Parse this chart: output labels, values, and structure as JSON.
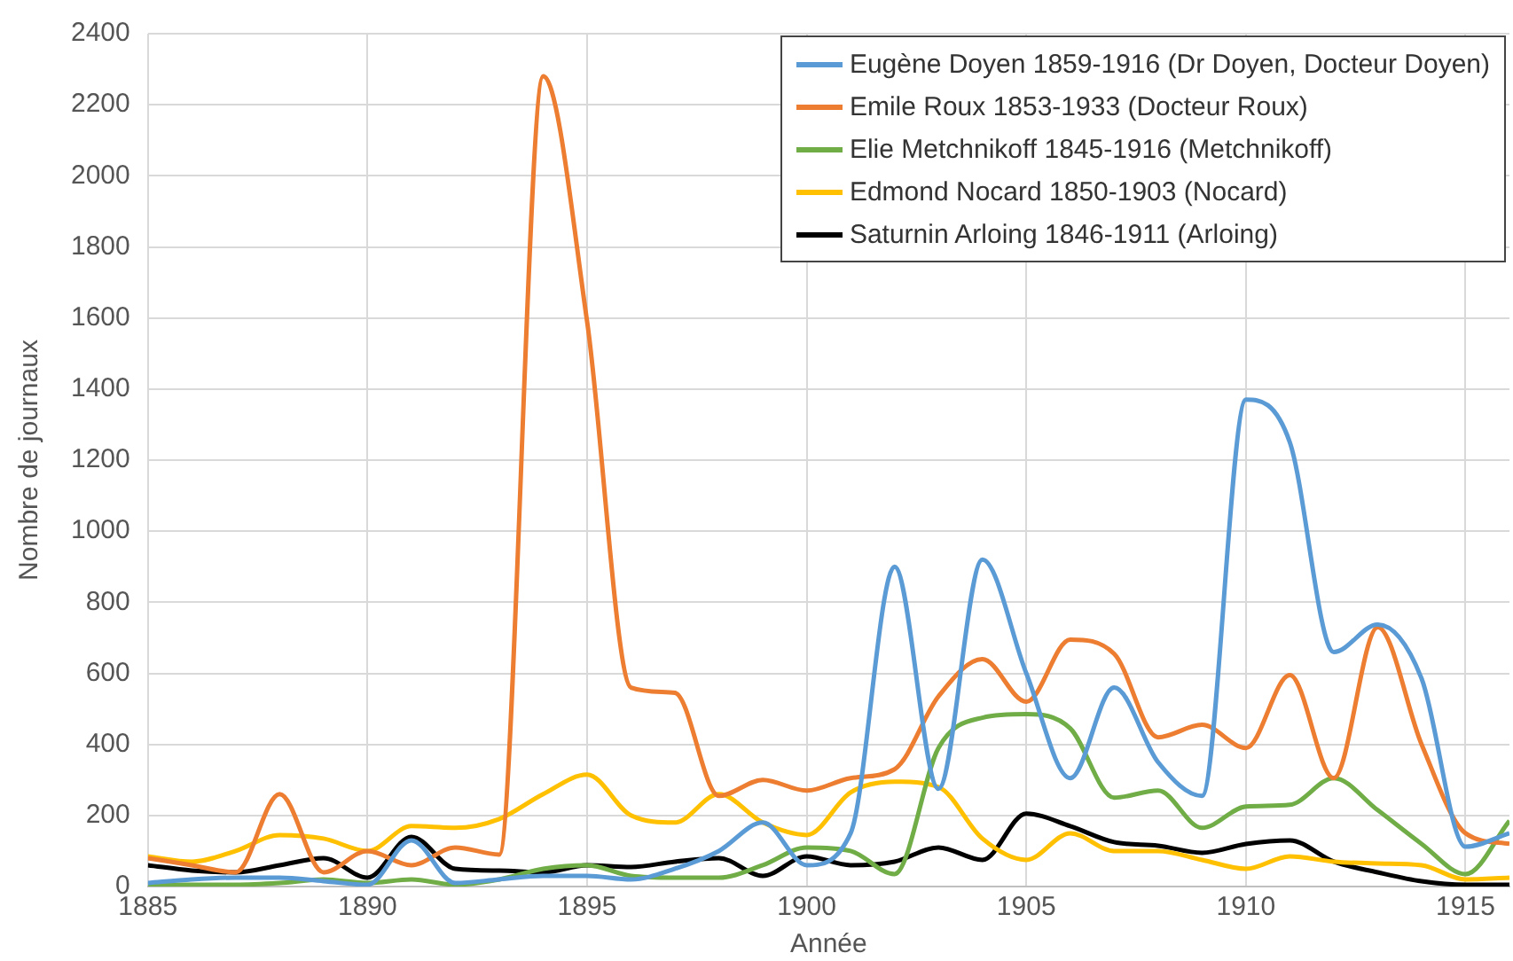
{
  "chart_data": {
    "type": "line",
    "xlabel": "Année",
    "ylabel": "Nombre de journaux",
    "x": [
      1885,
      1886,
      1887,
      1888,
      1889,
      1890,
      1891,
      1892,
      1893,
      1894,
      1895,
      1896,
      1897,
      1898,
      1899,
      1900,
      1901,
      1902,
      1903,
      1904,
      1905,
      1906,
      1907,
      1908,
      1909,
      1910,
      1911,
      1912,
      1913,
      1914,
      1915,
      1916
    ],
    "xlim": [
      1885,
      1916
    ],
    "xticks": [
      1885,
      1890,
      1895,
      1900,
      1905,
      1910,
      1915
    ],
    "ylim": [
      0,
      2400
    ],
    "yticks": [
      0,
      200,
      400,
      600,
      800,
      1000,
      1200,
      1400,
      1600,
      1800,
      2000,
      2200,
      2400
    ],
    "grid": true,
    "legend": "top right",
    "marker": "none",
    "line_style": "solid",
    "series": [
      {
        "name": "Eugène Doyen 1859-1916 (Dr Doyen, Docteur Doyen)",
        "color": "#5b9bd5",
        "values": [
          10,
          20,
          25,
          25,
          15,
          5,
          130,
          10,
          20,
          30,
          30,
          20,
          50,
          100,
          180,
          60,
          150,
          900,
          275,
          920,
          600,
          305,
          560,
          350,
          255,
          1370,
          1250,
          660,
          737,
          585,
          112,
          150
        ]
      },
      {
        "name": "Emile Roux 1853-1933 (Docteur Roux)",
        "color": "#ed7d31",
        "values": [
          80,
          60,
          40,
          260,
          40,
          100,
          60,
          110,
          90,
          2280,
          1590,
          560,
          545,
          255,
          300,
          270,
          305,
          330,
          535,
          640,
          520,
          695,
          655,
          420,
          455,
          390,
          595,
          305,
          730,
          400,
          150,
          120
        ]
      },
      {
        "name": "Elie Metchnikoff 1845-1916 (Metchnikoff)",
        "color": "#70ad47",
        "values": [
          5,
          5,
          5,
          10,
          20,
          10,
          20,
          5,
          20,
          50,
          60,
          30,
          25,
          25,
          60,
          110,
          100,
          35,
          390,
          475,
          485,
          445,
          250,
          270,
          165,
          225,
          230,
          305,
          215,
          120,
          35,
          185
        ]
      },
      {
        "name": "Edmond Nocard 1850-1903 (Nocard)",
        "color": "#ffc000",
        "values": [
          85,
          70,
          100,
          145,
          135,
          100,
          170,
          165,
          190,
          260,
          315,
          200,
          180,
          260,
          180,
          145,
          265,
          295,
          280,
          135,
          75,
          150,
          100,
          100,
          75,
          50,
          85,
          70,
          65,
          60,
          20,
          25
        ]
      },
      {
        "name": "Saturnin Arloing 1846-1911 (Arloing)",
        "color": "#000000",
        "values": [
          60,
          45,
          40,
          60,
          80,
          25,
          140,
          50,
          45,
          40,
          60,
          55,
          70,
          80,
          30,
          85,
          60,
          70,
          110,
          75,
          205,
          170,
          125,
          115,
          95,
          120,
          130,
          70,
          40,
          15,
          5,
          5
        ]
      }
    ]
  }
}
